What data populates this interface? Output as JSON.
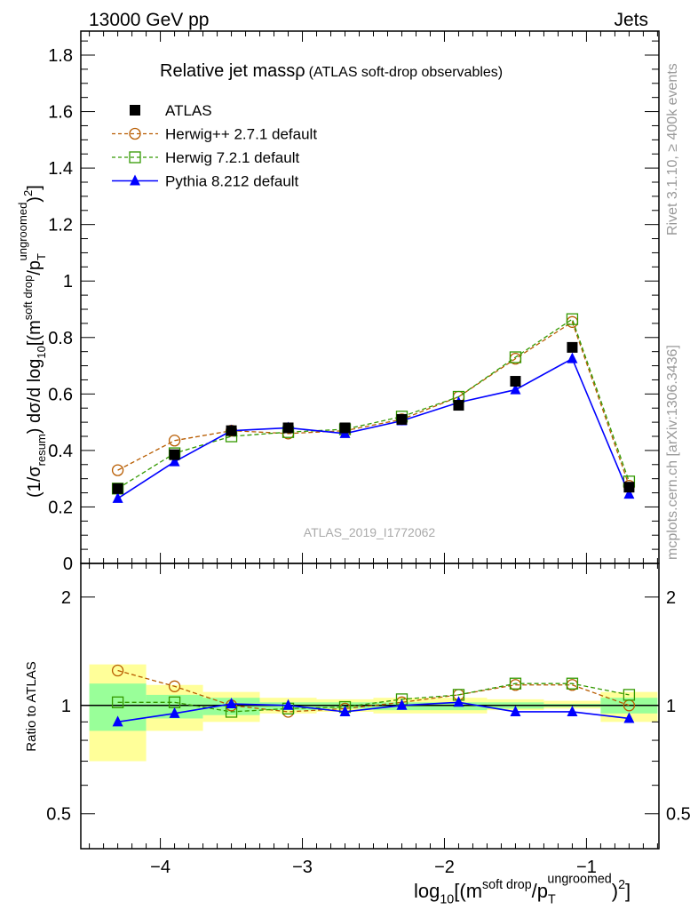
{
  "header": {
    "left": "13000 GeV pp",
    "right": "Jets"
  },
  "side_labels": {
    "rivet": "Rivet 3.1.10, ≥ 400k events",
    "mcplots": "mcplots.cern.ch [arXiv:1306.3436]"
  },
  "chart_data": [
    {
      "type": "line",
      "title": "Relative jet massρ",
      "subtitle": "(ATLAS soft-drop observables)",
      "watermark": "ATLAS_2019_I1772062",
      "ylabel_parts": [
        {
          "t": "(1/σ",
          "s": ""
        },
        {
          "t": "resum",
          "s": "sub"
        },
        {
          "t": ") dσ/d log",
          "s": ""
        },
        {
          "t": "10",
          "s": "sub"
        },
        {
          "t": "[(m",
          "s": ""
        },
        {
          "t": "soft drop",
          "s": "sup"
        },
        {
          "t": "/p",
          "s": ""
        },
        {
          "t": "T",
          "s": "sub"
        },
        {
          "t": "ungroomed",
          "s": "sup2"
        },
        {
          "t": ")",
          "s": ""
        },
        {
          "t": "2",
          "s": "sup"
        },
        {
          "t": "]",
          "s": ""
        }
      ],
      "xlim": [
        -4.56,
        -0.49
      ],
      "ylim": [
        0,
        1.885
      ],
      "yticks": [
        "0",
        "0.2",
        "0.4",
        "0.6",
        "0.8",
        "1",
        "1.2",
        "1.4",
        "1.6",
        "1.8"
      ],
      "x": [
        -4.3,
        -3.9,
        -3.5,
        -3.1,
        -2.7,
        -2.3,
        -1.9,
        -1.5,
        -1.1,
        -0.7
      ],
      "legend_position": "top-left",
      "series": [
        {
          "name": "ATLAS",
          "color": "#000000",
          "marker": "filled-square",
          "line": "none",
          "values": [
            0.265,
            0.385,
            0.47,
            0.48,
            0.48,
            0.51,
            0.56,
            0.645,
            0.765,
            0.27
          ]
        },
        {
          "name": "Herwig++ 2.7.1 default",
          "color": "#b85c00",
          "marker": "open-circle",
          "line": "dashed",
          "values": [
            0.33,
            0.435,
            0.47,
            0.46,
            0.47,
            0.51,
            0.59,
            0.725,
            0.855,
            0.275
          ]
        },
        {
          "name": "Herwig 7.2.1 default",
          "color": "#339900",
          "marker": "open-square",
          "line": "dashed",
          "values": [
            0.265,
            0.39,
            0.45,
            0.465,
            0.475,
            0.52,
            0.59,
            0.73,
            0.865,
            0.29
          ]
        },
        {
          "name": "Pythia 8.212 default",
          "color": "#0000ff",
          "marker": "filled-triangle",
          "line": "solid",
          "values": [
            0.23,
            0.36,
            0.47,
            0.48,
            0.46,
            0.505,
            0.57,
            0.615,
            0.725,
            0.245
          ]
        }
      ]
    },
    {
      "type": "line",
      "ylabel": "Ratio to ATLAS",
      "yscale": "log",
      "ylim": [
        0.4,
        2.48
      ],
      "xlim": [
        -4.56,
        -0.49
      ],
      "yticks": [
        {
          "v": 0.5,
          "label": "0.5"
        },
        {
          "v": 1,
          "label": "1"
        },
        {
          "v": 2,
          "label": "2"
        }
      ],
      "xticks": [
        {
          "v": -4,
          "label": "−4"
        },
        {
          "v": -3,
          "label": "−3"
        },
        {
          "v": -2,
          "label": "−2"
        },
        {
          "v": -1,
          "label": "−1"
        }
      ],
      "xlabel_parts": [
        {
          "t": "log",
          "s": ""
        },
        {
          "t": "10",
          "s": "sub"
        },
        {
          "t": "[(m",
          "s": ""
        },
        {
          "t": "soft drop",
          "s": "sup"
        },
        {
          "t": "/p",
          "s": ""
        },
        {
          "t": "T",
          "s": "sub"
        },
        {
          "t": "ungroomed",
          "s": "sup2"
        },
        {
          "t": ")",
          "s": ""
        },
        {
          "t": "2",
          "s": "sup"
        },
        {
          "t": "]",
          "s": ""
        }
      ],
      "bin_edges": [
        -4.5,
        -4.1,
        -3.7,
        -3.3,
        -2.9,
        -2.5,
        -2.1,
        -1.7,
        -1.3,
        -0.9,
        -0.5
      ],
      "band_total": {
        "color": "#ffff99",
        "lo": [
          0.7,
          0.85,
          0.9,
          0.95,
          0.96,
          0.95,
          0.95,
          0.97,
          0.98,
          0.9
        ],
        "hi": [
          1.3,
          1.14,
          1.09,
          1.05,
          1.04,
          1.05,
          1.05,
          1.04,
          1.03,
          1.09
        ]
      },
      "band_stat": {
        "color": "#99ff99",
        "lo": [
          0.85,
          0.92,
          0.94,
          0.97,
          0.98,
          0.97,
          0.97,
          0.98,
          0.99,
          0.95
        ],
        "hi": [
          1.15,
          1.07,
          1.05,
          1.02,
          1.02,
          1.02,
          1.02,
          1.02,
          1.01,
          1.05
        ]
      },
      "x": [
        -4.3,
        -3.9,
        -3.5,
        -3.1,
        -2.7,
        -2.3,
        -1.9,
        -1.5,
        -1.1,
        -0.7
      ],
      "series": [
        {
          "name": "Herwig++ 2.7.1 default",
          "values": [
            1.25,
            1.13,
            1.0,
            0.96,
            0.98,
            1.02,
            1.07,
            1.14,
            1.14,
            1.0
          ]
        },
        {
          "name": "Herwig 7.2.1 default",
          "values": [
            1.02,
            1.02,
            0.96,
            0.98,
            0.99,
            1.04,
            1.07,
            1.15,
            1.15,
            1.07
          ]
        },
        {
          "name": "Pythia 8.212 default",
          "values": [
            0.9,
            0.95,
            1.01,
            1.0,
            0.96,
            1.0,
            1.02,
            0.96,
            0.96,
            0.92
          ]
        }
      ]
    }
  ]
}
